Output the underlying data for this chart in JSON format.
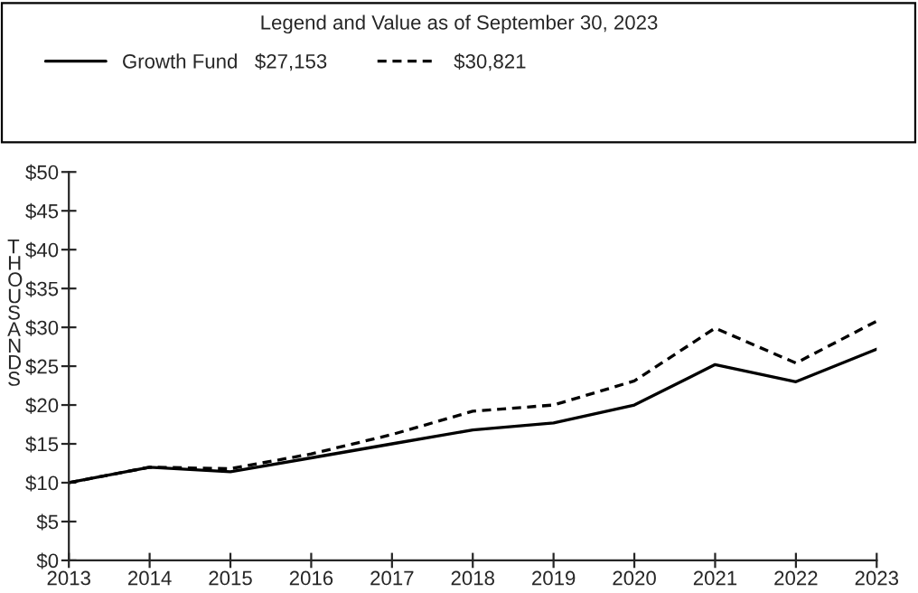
{
  "chart_data": {
    "type": "line",
    "legend_title": "Legend and Value as of September 30, 2023",
    "ylabel": "THOUSANDS",
    "categories": [
      "2013",
      "2014",
      "2015",
      "2016",
      "2017",
      "2018",
      "2019",
      "2020",
      "2021",
      "2022",
      "2023"
    ],
    "series": [
      {
        "name": "Growth Fund   $27,153",
        "color": "#000000",
        "line_style": "solid",
        "values": [
          10,
          12,
          11.4,
          13.2,
          15,
          16.8,
          17.7,
          20,
          25.2,
          23,
          27.2
        ]
      },
      {
        "name": "$30,821",
        "color": "#000000",
        "line_style": "dashed",
        "values": [
          10,
          12,
          11.8,
          13.7,
          16.2,
          19.2,
          20,
          23.1,
          29.9,
          25.4,
          30.8
        ]
      }
    ],
    "ylim": [
      0,
      50
    ],
    "yticks": [
      {
        "value": 0,
        "label": "$0"
      },
      {
        "value": 5,
        "label": "$5"
      },
      {
        "value": 10,
        "label": "$10"
      },
      {
        "value": 15,
        "label": "$15"
      },
      {
        "value": 20,
        "label": "$20"
      },
      {
        "value": 25,
        "label": "$25"
      },
      {
        "value": 30,
        "label": "$30"
      },
      {
        "value": 35,
        "label": "$35"
      },
      {
        "value": 40,
        "label": "$40"
      },
      {
        "value": 45,
        "label": "$45"
      },
      {
        "value": 50,
        "label": "$50"
      }
    ],
    "grid": false,
    "legend": "top",
    "marker": "none"
  }
}
